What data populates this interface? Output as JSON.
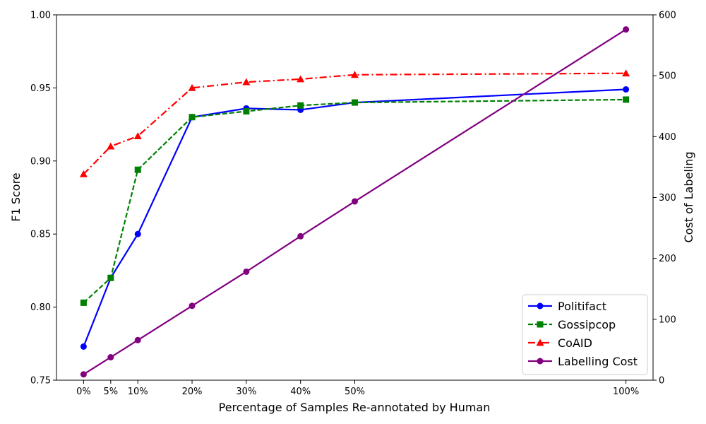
{
  "chart_data": {
    "type": "line",
    "x": [
      0,
      5,
      10,
      20,
      30,
      40,
      50,
      100
    ],
    "x_tick_labels": [
      "0%",
      "5%",
      "10%",
      "20%",
      "30%",
      "40%",
      "50%",
      "100%"
    ],
    "xlabel": "Percentage of Samples Re-annotated by Human",
    "xlim": [
      -5,
      105
    ],
    "ylabel": "F1 Score",
    "ylim": [
      0.75,
      1.0
    ],
    "y_ticks": [
      0.75,
      0.8,
      0.85,
      0.9,
      0.95,
      1.0
    ],
    "y_tick_labels": [
      "0.75",
      "0.80",
      "0.85",
      "0.90",
      "0.95",
      "1.00"
    ],
    "y2label": "Cost of Labeling",
    "y2lim": [
      0,
      600
    ],
    "y2_ticks": [
      0,
      100,
      200,
      300,
      400,
      500,
      600
    ],
    "y2_tick_labels": [
      "0",
      "100",
      "200",
      "300",
      "400",
      "500",
      "600"
    ],
    "grid": false,
    "legend_position": "bottom-right",
    "series": [
      {
        "name": "Politifact",
        "axis": "left",
        "color": "#0000ff",
        "marker": "circle",
        "dash": "solid",
        "values": [
          0.773,
          0.82,
          0.85,
          0.93,
          0.936,
          0.935,
          0.94,
          0.949
        ]
      },
      {
        "name": "Gossipcop",
        "axis": "left",
        "color": "#008000",
        "marker": "square",
        "dash": "dashed",
        "values": [
          0.803,
          0.82,
          0.894,
          0.93,
          0.934,
          0.938,
          0.94,
          0.942
        ]
      },
      {
        "name": "CoAID",
        "axis": "left",
        "color": "#ff0000",
        "marker": "triangle",
        "dash": "dashdot",
        "values": [
          0.891,
          0.91,
          0.917,
          0.95,
          0.954,
          0.956,
          0.959,
          0.96
        ]
      },
      {
        "name": "Labelling Cost",
        "axis": "right",
        "color": "#800080",
        "marker": "circle",
        "dash": "solid",
        "values": [
          9.6,
          37.7,
          65.8,
          122.1,
          178.2,
          236.4,
          293.6,
          576.0
        ]
      }
    ]
  }
}
